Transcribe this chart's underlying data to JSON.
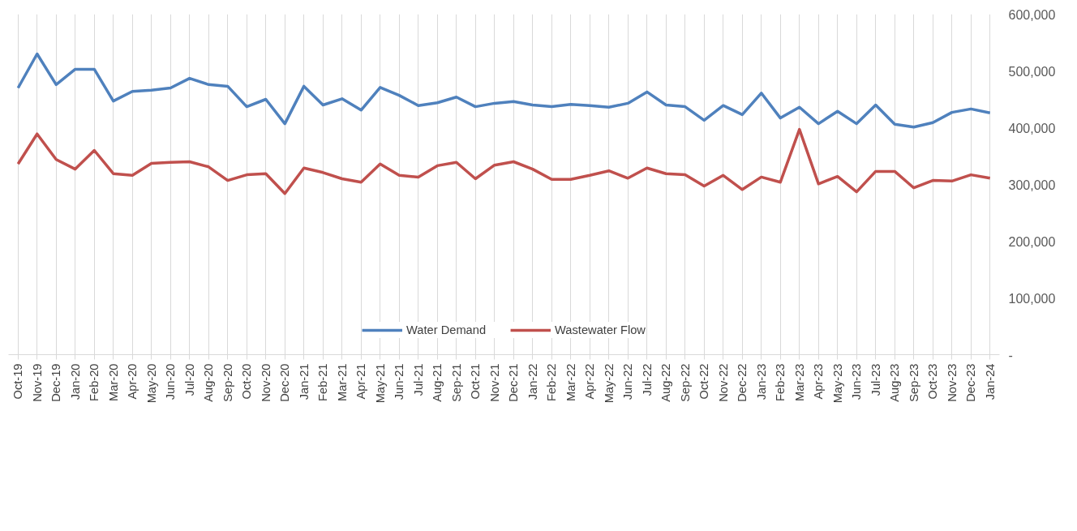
{
  "chart_data": {
    "type": "line",
    "categories": [
      "Oct-19",
      "Nov-19",
      "Dec-19",
      "Jan-20",
      "Feb-20",
      "Mar-20",
      "Apr-20",
      "May-20",
      "Jun-20",
      "Jul-20",
      "Aug-20",
      "Sep-20",
      "Oct-20",
      "Nov-20",
      "Dec-20",
      "Jan-21",
      "Feb-21",
      "Mar-21",
      "Apr-21",
      "May-21",
      "Jun-21",
      "Jul-21",
      "Aug-21",
      "Sep-21",
      "Oct-21",
      "Nov-21",
      "Dec-21",
      "Jan-22",
      "Feb-22",
      "Mar-22",
      "Apr-22",
      "May-22",
      "Jun-22",
      "Jul-22",
      "Aug-22",
      "Sep-22",
      "Oct-22",
      "Nov-22",
      "Dec-22",
      "Jan-23",
      "Feb-23",
      "Mar-23",
      "Apr-23",
      "May-23",
      "Jun-23",
      "Jul-23",
      "Aug-23",
      "Sep-23",
      "Oct-23",
      "Nov-23",
      "Dec-23",
      "Jan-24"
    ],
    "series": [
      {
        "name": "Water Demand",
        "color": "#4f81bd",
        "values": [
          470000,
          530000,
          476000,
          503000,
          503000,
          447000,
          464000,
          466000,
          470000,
          487000,
          476000,
          473000,
          437000,
          450000,
          407000,
          473000,
          440000,
          451000,
          431000,
          471000,
          457000,
          439000,
          444000,
          454000,
          437000,
          443000,
          446000,
          440000,
          437000,
          441000,
          439000,
          436000,
          443000,
          463000,
          440000,
          437000,
          413000,
          439000,
          423000,
          461000,
          417000,
          436000,
          407000,
          429000,
          407000,
          440000,
          406000,
          401000,
          409000,
          427000,
          433000,
          426000
        ]
      },
      {
        "name": "Wastewater Flow",
        "color": "#c0504d",
        "values": [
          336000,
          389000,
          344000,
          327000,
          360000,
          319000,
          316000,
          337000,
          339000,
          340000,
          331000,
          307000,
          317000,
          319000,
          284000,
          329000,
          321000,
          310000,
          304000,
          336000,
          316000,
          313000,
          333000,
          339000,
          310000,
          334000,
          340000,
          327000,
          309000,
          309000,
          316000,
          324000,
          311000,
          329000,
          319000,
          317000,
          297000,
          316000,
          291000,
          313000,
          304000,
          397000,
          301000,
          314000,
          287000,
          323000,
          323000,
          294000,
          307000,
          306000,
          317000,
          311000
        ]
      }
    ],
    "ylim": [
      0,
      600000
    ],
    "yticks": [
      {
        "value": 0,
        "label": "-"
      },
      {
        "value": 100000,
        "label": "100,000"
      },
      {
        "value": 200000,
        "label": "200,000"
      },
      {
        "value": 300000,
        "label": "300,000"
      },
      {
        "value": 400000,
        "label": "400,000"
      },
      {
        "value": 500000,
        "label": "500,000"
      },
      {
        "value": 600000,
        "label": "600,000"
      }
    ],
    "grid": "x",
    "legend": "bottom",
    "marker": "none",
    "line_style": "solid"
  }
}
